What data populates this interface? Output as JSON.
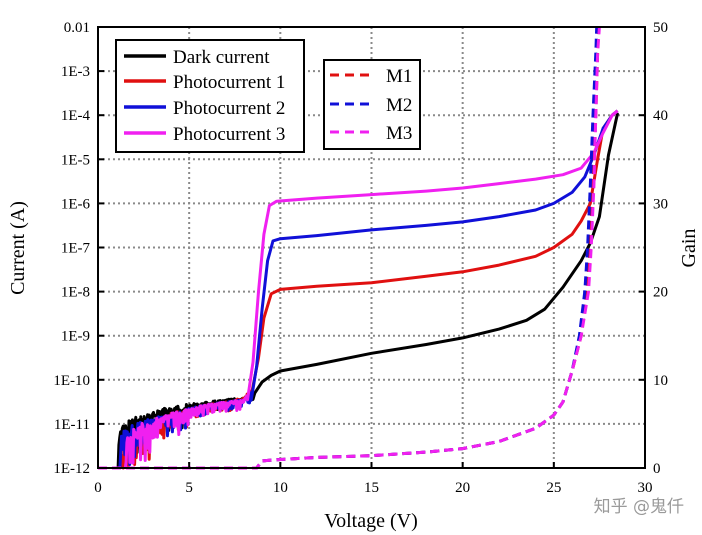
{
  "chart_data": {
    "type": "line",
    "xlabel": "Voltage (V)",
    "ylabel": "Current (A)",
    "y2label": "Gain",
    "xlim": [
      0,
      30
    ],
    "ylim_log10": [
      -12,
      -2
    ],
    "y2lim": [
      0,
      50
    ],
    "grid": true,
    "x_ticks": [
      0,
      5,
      10,
      15,
      20,
      25,
      30
    ],
    "x_tick_labels": [
      "0",
      "5",
      "10",
      "15",
      "20",
      "25",
      "30"
    ],
    "y_ticks_log10": [
      -12,
      -11,
      -10,
      -9,
      -8,
      -7,
      -6,
      -5,
      -4,
      -3,
      -2
    ],
    "y_tick_labels": [
      "1E-12",
      "1E-11",
      "1E-10",
      "1E-9",
      "1E-8",
      "1E-7",
      "1E-6",
      "1E-5",
      "1E-4",
      "1E-3",
      "0.01"
    ],
    "y2_ticks": [
      0,
      10,
      20,
      30,
      40,
      50
    ],
    "y2_tick_labels": [
      "0",
      "10",
      "20",
      "30",
      "40",
      "50"
    ],
    "current_series": [
      {
        "name": "Dark current",
        "color": "#000000",
        "points": [
          [
            1.1,
            -12.0
          ],
          [
            1.15,
            -11.3
          ],
          [
            1.3,
            -11.0
          ],
          [
            2,
            -10.85
          ],
          [
            3,
            -10.7
          ],
          [
            4,
            -10.6
          ],
          [
            5,
            -10.55
          ],
          [
            6,
            -10.5
          ],
          [
            7,
            -10.45
          ],
          [
            8,
            -10.4
          ],
          [
            8.6,
            -10.3
          ],
          [
            9.0,
            -10.05
          ],
          [
            9.5,
            -9.9
          ],
          [
            10,
            -9.8
          ],
          [
            12,
            -9.65
          ],
          [
            15,
            -9.4
          ],
          [
            18,
            -9.2
          ],
          [
            20,
            -9.05
          ],
          [
            22,
            -8.85
          ],
          [
            23.5,
            -8.65
          ],
          [
            24.5,
            -8.4
          ],
          [
            25.5,
            -7.9
          ],
          [
            26.5,
            -7.3
          ],
          [
            27,
            -6.9
          ],
          [
            27.5,
            -6.3
          ],
          [
            28,
            -4.9
          ],
          [
            28.5,
            -3.95
          ]
        ],
        "noise_range": [
          1.1,
          8.5
        ]
      },
      {
        "name": "Photocurrent 1",
        "color": "#e01010",
        "points": [
          [
            1.3,
            -12.0
          ],
          [
            1.4,
            -11.3
          ],
          [
            2,
            -11.05
          ],
          [
            3,
            -10.9
          ],
          [
            4,
            -10.75
          ],
          [
            5,
            -10.65
          ],
          [
            6,
            -10.55
          ],
          [
            7,
            -10.5
          ],
          [
            8,
            -10.4
          ],
          [
            8.4,
            -10.2
          ],
          [
            8.8,
            -9.5
          ],
          [
            9.1,
            -8.6
          ],
          [
            9.5,
            -8.05
          ],
          [
            10,
            -7.95
          ],
          [
            12,
            -7.88
          ],
          [
            15,
            -7.8
          ],
          [
            18,
            -7.65
          ],
          [
            20,
            -7.55
          ],
          [
            22,
            -7.4
          ],
          [
            24,
            -7.2
          ],
          [
            25,
            -7.0
          ],
          [
            26,
            -6.7
          ],
          [
            26.5,
            -6.4
          ],
          [
            27,
            -6.0
          ],
          [
            27.4,
            -5.0
          ],
          [
            27.7,
            -4.3
          ],
          [
            28.2,
            -4.0
          ],
          [
            28.5,
            -3.9
          ]
        ],
        "noise_range": [
          1.3,
          8.4
        ]
      },
      {
        "name": "Photocurrent 2",
        "color": "#1010d8",
        "points": [
          [
            1.2,
            -12.0
          ],
          [
            1.3,
            -11.2
          ],
          [
            2,
            -11.0
          ],
          [
            3,
            -10.85
          ],
          [
            4,
            -10.75
          ],
          [
            5,
            -10.65
          ],
          [
            6,
            -10.55
          ],
          [
            7,
            -10.5
          ],
          [
            8,
            -10.45
          ],
          [
            8.4,
            -10.25
          ],
          [
            8.7,
            -9.7
          ],
          [
            9.0,
            -8.4
          ],
          [
            9.3,
            -7.3
          ],
          [
            9.6,
            -6.85
          ],
          [
            10,
            -6.8
          ],
          [
            12,
            -6.73
          ],
          [
            15,
            -6.6
          ],
          [
            18,
            -6.5
          ],
          [
            20,
            -6.42
          ],
          [
            22,
            -6.3
          ],
          [
            24,
            -6.15
          ],
          [
            25,
            -6.0
          ],
          [
            26,
            -5.75
          ],
          [
            26.7,
            -5.4
          ],
          [
            27.2,
            -4.9
          ],
          [
            27.7,
            -4.3
          ],
          [
            28.2,
            -4.0
          ],
          [
            28.5,
            -3.9
          ]
        ],
        "noise_range": [
          1.2,
          8.4
        ]
      },
      {
        "name": "Photocurrent 3",
        "color": "#f020f0",
        "points": [
          [
            1.5,
            -12.0
          ],
          [
            1.6,
            -11.3
          ],
          [
            2,
            -11.05
          ],
          [
            3,
            -10.9
          ],
          [
            4,
            -10.75
          ],
          [
            5,
            -10.65
          ],
          [
            6,
            -10.55
          ],
          [
            7,
            -10.5
          ],
          [
            8,
            -10.45
          ],
          [
            8.2,
            -10.3
          ],
          [
            8.5,
            -9.6
          ],
          [
            8.8,
            -8.0
          ],
          [
            9.1,
            -6.7
          ],
          [
            9.4,
            -6.05
          ],
          [
            9.8,
            -5.95
          ],
          [
            12,
            -5.88
          ],
          [
            15,
            -5.8
          ],
          [
            18,
            -5.72
          ],
          [
            20,
            -5.65
          ],
          [
            22,
            -5.55
          ],
          [
            24,
            -5.45
          ],
          [
            25.5,
            -5.35
          ],
          [
            26.5,
            -5.2
          ],
          [
            27.2,
            -4.85
          ],
          [
            27.7,
            -4.4
          ],
          [
            28.2,
            -4.0
          ],
          [
            28.5,
            -3.9
          ]
        ],
        "noise_range": [
          1.5,
          8.2
        ]
      }
    ],
    "gain_series": [
      {
        "name": "M1",
        "color": "#e01010",
        "dash": true,
        "points": [
          [
            0,
            0
          ],
          [
            8.7,
            0
          ],
          [
            9.0,
            0.8
          ],
          [
            9.5,
            0.9
          ],
          [
            12,
            1.2
          ],
          [
            15,
            1.4
          ],
          [
            18,
            1.8
          ],
          [
            20,
            2.2
          ],
          [
            22,
            3.0
          ],
          [
            24,
            4.5
          ],
          [
            25,
            6.0
          ],
          [
            25.5,
            7.5
          ],
          [
            26,
            11
          ],
          [
            26.5,
            15
          ],
          [
            26.8,
            20
          ],
          [
            27.0,
            25
          ],
          [
            27.15,
            32
          ],
          [
            27.3,
            40
          ],
          [
            27.4,
            47
          ],
          [
            27.45,
            50
          ]
        ]
      },
      {
        "name": "M2",
        "color": "#1010d8",
        "dash": true,
        "points": [
          [
            0,
            0
          ],
          [
            8.7,
            0
          ],
          [
            9.0,
            0.8
          ],
          [
            9.5,
            0.9
          ],
          [
            12,
            1.2
          ],
          [
            15,
            1.4
          ],
          [
            18,
            1.8
          ],
          [
            20,
            2.2
          ],
          [
            22,
            3.0
          ],
          [
            24,
            4.5
          ],
          [
            25,
            6.0
          ],
          [
            25.5,
            7.5
          ],
          [
            26,
            11
          ],
          [
            26.4,
            15
          ],
          [
            26.7,
            20
          ],
          [
            26.85,
            25
          ],
          [
            27.0,
            32
          ],
          [
            27.15,
            40
          ],
          [
            27.3,
            47
          ],
          [
            27.35,
            50
          ]
        ]
      },
      {
        "name": "M3",
        "color": "#f020f0",
        "dash": true,
        "points": [
          [
            0,
            0
          ],
          [
            8.7,
            0
          ],
          [
            9.0,
            0.8
          ],
          [
            9.5,
            0.9
          ],
          [
            12,
            1.2
          ],
          [
            15,
            1.4
          ],
          [
            18,
            1.8
          ],
          [
            20,
            2.2
          ],
          [
            22,
            3.0
          ],
          [
            24,
            4.5
          ],
          [
            25,
            6.0
          ],
          [
            25.5,
            7.5
          ],
          [
            26,
            11
          ],
          [
            26.5,
            15
          ],
          [
            26.9,
            20
          ],
          [
            27.05,
            25
          ],
          [
            27.2,
            32
          ],
          [
            27.3,
            40
          ],
          [
            27.4,
            47
          ],
          [
            27.5,
            50
          ]
        ]
      }
    ],
    "legend_current": [
      "Dark current",
      "Photocurrent 1",
      "Photocurrent 2",
      "Photocurrent 3"
    ],
    "legend_gain": [
      "M1",
      "M2",
      "M3"
    ]
  },
  "watermark": "知乎 @鬼仟"
}
